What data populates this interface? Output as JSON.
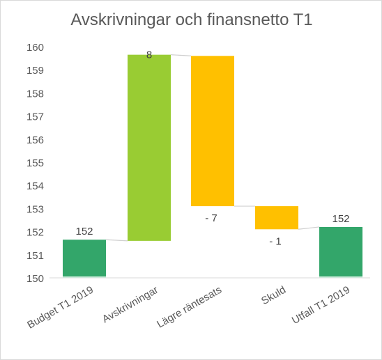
{
  "chart_data": {
    "type": "waterfall",
    "title": "Avskrivningar och finansnetto T1",
    "xlabel": "",
    "ylabel": "",
    "ylim": [
      150,
      160
    ],
    "yticks": [
      "150",
      "151",
      "152",
      "153",
      "154",
      "155",
      "156",
      "157",
      "158",
      "159",
      "160"
    ],
    "grid": false,
    "legend": "none",
    "categories": [
      "Budget T1 2019",
      "Avskrivningar",
      "Lägre räntesats",
      "Skuld",
      "Utfall T1 2019"
    ],
    "bars": [
      {
        "category": "Budget T1 2019",
        "kind": "total",
        "start": 150,
        "end": 151.65,
        "label": "152",
        "color": "#33a66a"
      },
      {
        "category": "Avskrivningar",
        "kind": "increase",
        "start": 151.6,
        "end": 159.65,
        "label": "8",
        "color": "#99cc33"
      },
      {
        "category": "Lägre räntesats",
        "kind": "decrease",
        "start": 159.6,
        "end": 153.1,
        "label": "- 7",
        "color": "#ffc000"
      },
      {
        "category": "Skuld",
        "kind": "decrease",
        "start": 153.1,
        "end": 152.1,
        "label": "- 1",
        "color": "#ffc000"
      },
      {
        "category": "Utfall T1 2019",
        "kind": "total",
        "start": 150,
        "end": 152.2,
        "label": "152",
        "color": "#33a66a"
      }
    ]
  }
}
